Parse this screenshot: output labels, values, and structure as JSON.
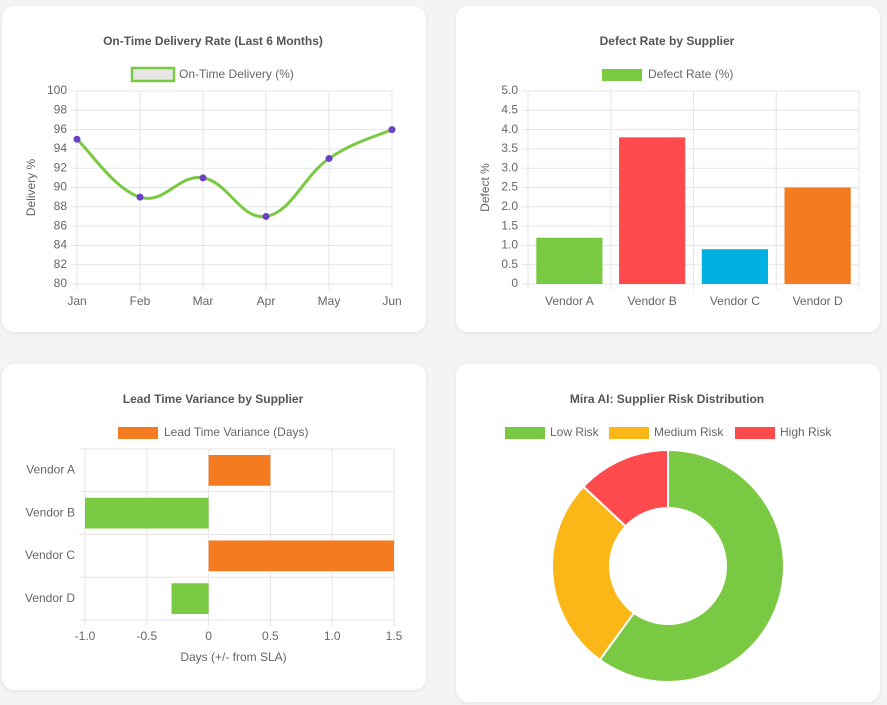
{
  "colors": {
    "green": "#7ac943",
    "red": "#ff4b4e",
    "blue": "#00b0e0",
    "orange": "#f47b20",
    "yellow": "#fbb718",
    "point": "#6c3fc7",
    "legendBoxFill": "#e6e6e6"
  },
  "chart_data": [
    {
      "type": "line",
      "title": "On-Time Delivery Rate (Last 6 Months)",
      "xlabel": "",
      "ylabel": "Delivery %",
      "categories": [
        "Jan",
        "Feb",
        "Mar",
        "Apr",
        "May",
        "Jun"
      ],
      "series": [
        {
          "name": "On-Time Delivery (%)",
          "values": [
            95,
            89,
            91,
            87,
            93,
            96
          ]
        }
      ],
      "ylim": [
        80,
        100
      ],
      "yticks": [
        "80",
        "82",
        "84",
        "86",
        "88",
        "90",
        "92",
        "94",
        "96",
        "98",
        "100"
      ],
      "grid": true,
      "legend": "top"
    },
    {
      "type": "bar",
      "title": "Defect Rate by Supplier",
      "xlabel": "",
      "ylabel": "Defect %",
      "categories": [
        "Vendor A",
        "Vendor B",
        "Vendor C",
        "Vendor D"
      ],
      "series": [
        {
          "name": "Defect Rate (%)",
          "values": [
            1.2,
            3.8,
            0.9,
            2.5
          ]
        }
      ],
      "ylim": [
        0,
        5
      ],
      "yticks": [
        "0",
        "0.5",
        "1.0",
        "1.5",
        "2.0",
        "2.5",
        "3.0",
        "3.5",
        "4.0",
        "4.5",
        "5.0"
      ],
      "grid": true,
      "legend": "top"
    },
    {
      "type": "bar",
      "orientation": "horizontal",
      "title": "Lead Time Variance by Supplier",
      "xlabel": "Days (+/- from SLA)",
      "ylabel": "",
      "categories": [
        "Vendor A",
        "Vendor B",
        "Vendor C",
        "Vendor D"
      ],
      "series": [
        {
          "name": "Lead Time Variance (Days)",
          "values": [
            0.5,
            -1.0,
            1.5,
            -0.3
          ]
        }
      ],
      "xlim": [
        -1,
        1.5
      ],
      "xticks": [
        "-1.0",
        "-0.5",
        "0",
        "0.5",
        "1.0",
        "1.5"
      ],
      "grid": true,
      "legend": "top"
    },
    {
      "type": "pie",
      "variant": "doughnut",
      "title": "Mira AI: Supplier Risk Distribution",
      "categories": [
        "Low Risk",
        "Medium Risk",
        "High Risk"
      ],
      "values": [
        60,
        27,
        13
      ],
      "legend": "top"
    }
  ]
}
